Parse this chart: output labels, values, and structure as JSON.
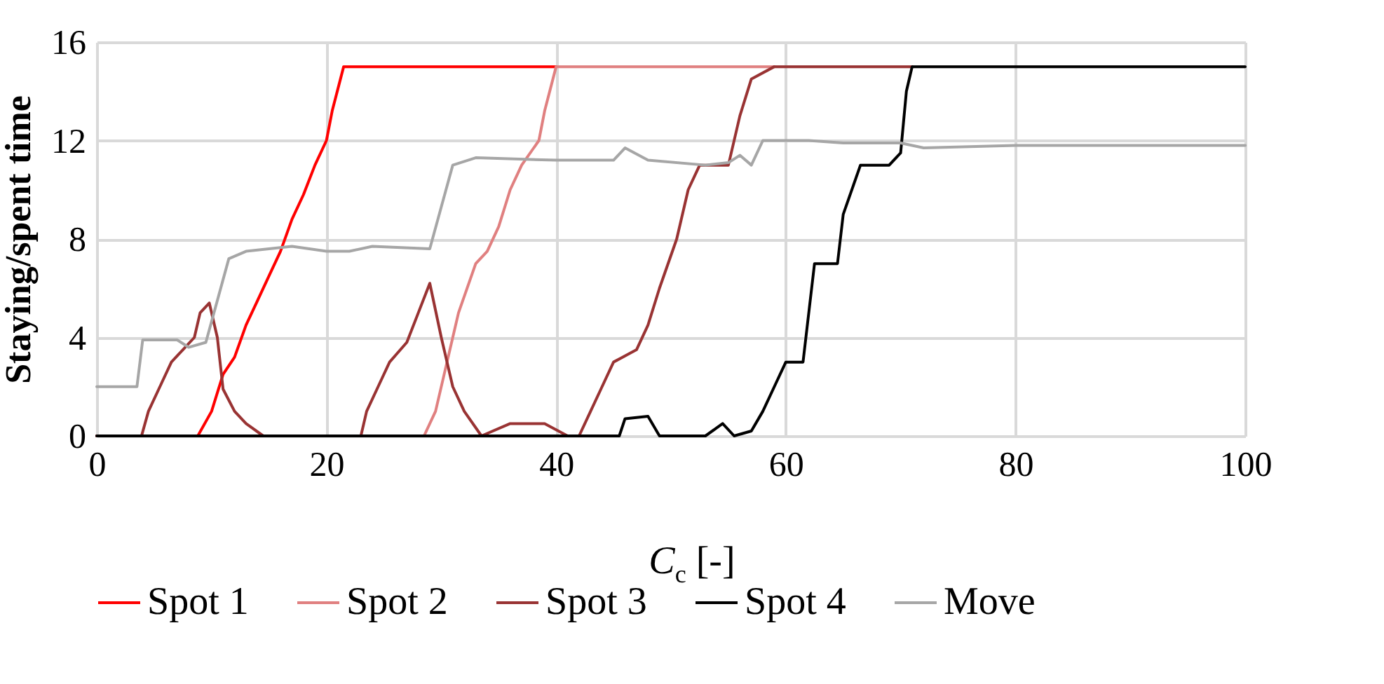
{
  "chart_data": {
    "type": "line",
    "xlabel": "C$_{c}$  [-]",
    "ylabel": "Staying/spent time",
    "xlim": [
      0,
      100
    ],
    "xticks": [
      0,
      20,
      40,
      60,
      80,
      100
    ],
    "ylim": [
      0,
      16
    ],
    "yticks": [
      0,
      4,
      8,
      12,
      16
    ],
    "grid": true,
    "legend": "bottom",
    "line_style": "solid",
    "series": [
      {
        "name": "Spot 1",
        "color": "#ff0000",
        "x": [
          0,
          8.8,
          10,
          11,
          12,
          13,
          14,
          15,
          16,
          17,
          18,
          19,
          20,
          20.5,
          21.5,
          40
        ],
        "values": [
          0,
          0,
          1,
          2.5,
          3.2,
          4.5,
          5.5,
          6.5,
          7.5,
          8.8,
          9.8,
          11,
          12,
          13.2,
          15,
          15
        ]
      },
      {
        "name": "Spot 2",
        "color": "#e08080",
        "x": [
          0,
          28.5,
          29.5,
          30.5,
          31.5,
          33,
          34,
          35,
          36,
          37,
          38.5,
          39,
          40,
          59
        ],
        "values": [
          0,
          0,
          1,
          3,
          5,
          7,
          7.5,
          8.5,
          10,
          11,
          12,
          13.2,
          15,
          15
        ]
      },
      {
        "name": "Spot 3",
        "color": "#993333",
        "x": [
          0,
          3.9,
          4.5,
          5.5,
          6.5,
          7.5,
          8.5,
          9,
          9.8,
          10.5,
          11,
          12,
          13,
          14.5,
          23,
          23.5,
          24.5,
          25.5,
          27,
          28,
          29,
          30,
          31,
          32,
          33.5,
          36,
          39,
          41,
          42,
          43,
          44,
          45,
          47,
          48,
          49,
          50.5,
          51.5,
          52.5,
          55,
          56,
          57,
          59,
          71
        ],
        "values": [
          0,
          0,
          1,
          2,
          3,
          3.5,
          4,
          5,
          5.4,
          4,
          1.9,
          1,
          0.5,
          0,
          0,
          1,
          2,
          3,
          3.8,
          5,
          6.2,
          4,
          2,
          1,
          0,
          0.5,
          0.5,
          0,
          0,
          1,
          2,
          3,
          3.5,
          4.5,
          6,
          8,
          10,
          11,
          11,
          13,
          14.5,
          15,
          15
        ]
      },
      {
        "name": "Spot 4",
        "color": "#000000",
        "x": [
          0,
          45.5,
          46,
          48,
          49,
          53,
          54.5,
          55.5,
          57,
          58,
          59,
          60,
          61.5,
          62.5,
          64.5,
          65,
          66.5,
          69,
          70,
          70.5,
          71,
          100
        ],
        "values": [
          0,
          0,
          0.7,
          0.8,
          0,
          0,
          0.5,
          0,
          0.2,
          1,
          2,
          3,
          3,
          7,
          7,
          9,
          11,
          11,
          11.5,
          14,
          15,
          15
        ]
      },
      {
        "name": "Move",
        "color": "#a6a6a6",
        "x": [
          0,
          3.5,
          4,
          7,
          8,
          9.5,
          11.5,
          13,
          15,
          17,
          20,
          22,
          24,
          29,
          30,
          31,
          33,
          40,
          45,
          46,
          48,
          53,
          55,
          56,
          57,
          58,
          62,
          65,
          70,
          72,
          80,
          90,
          100
        ],
        "values": [
          2,
          2,
          3.9,
          3.9,
          3.6,
          3.8,
          7.2,
          7.5,
          7.6,
          7.7,
          7.5,
          7.5,
          7.7,
          7.6,
          9.3,
          11,
          11.3,
          11.2,
          11.2,
          11.7,
          11.2,
          11,
          11.1,
          11.4,
          11,
          12,
          12,
          11.9,
          11.9,
          11.7,
          11.8,
          11.8,
          11.8
        ]
      }
    ]
  }
}
